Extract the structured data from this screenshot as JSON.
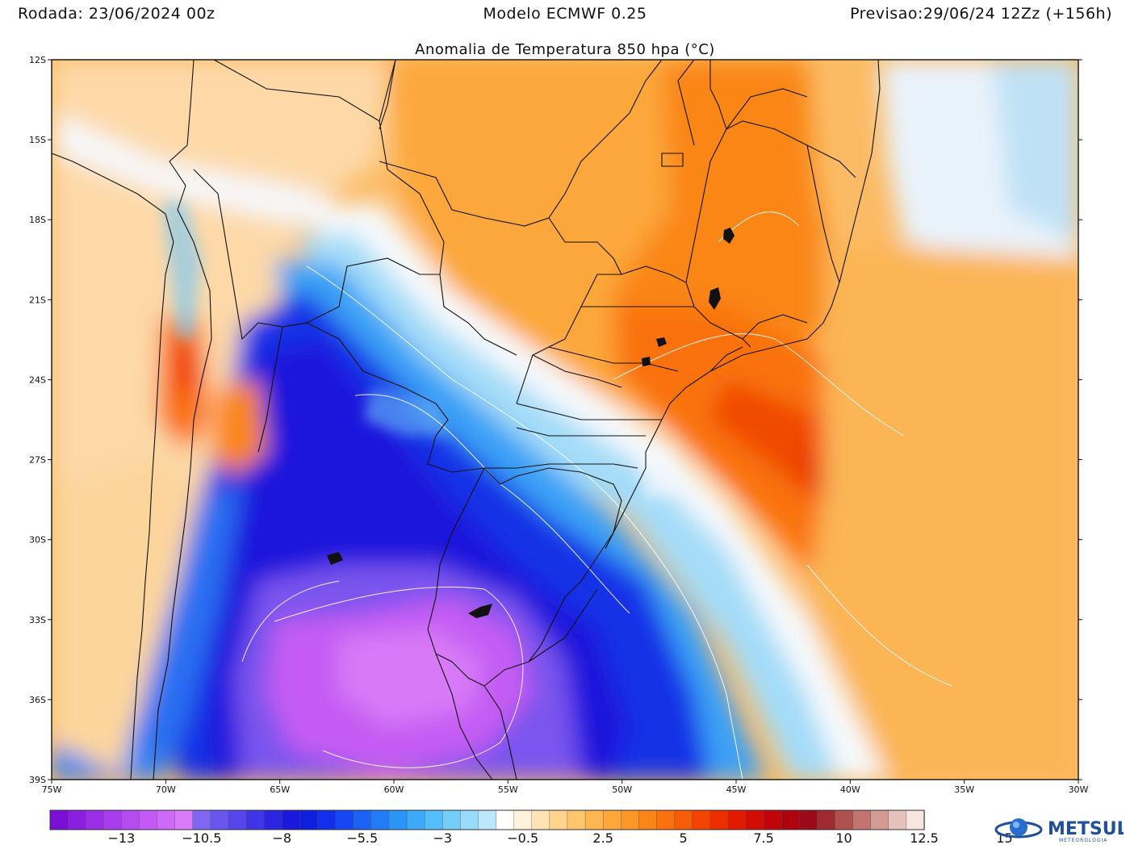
{
  "header": {
    "run": "Rodada: 23/06/2024 00z",
    "model": "Modelo ECMWF 0.25",
    "forecast": "Previsao:29/06/24 12Zz (+156h)",
    "title": "Anomalia de Temperatura 850 hpa (°C)"
  },
  "map": {
    "lon_range": [
      -75,
      -30
    ],
    "lat_range": [
      -39,
      -12
    ],
    "lat_labels": [
      "12S",
      "15S",
      "18S",
      "21S",
      "24S",
      "27S",
      "30S",
      "33S",
      "36S",
      "39S"
    ],
    "lon_labels": [
      "75W",
      "70W",
      "65W",
      "60W",
      "55W",
      "50W",
      "45W",
      "40W",
      "35W",
      "30W"
    ]
  },
  "colorbar": {
    "colors": [
      "#7b0fd6",
      "#8b1ee0",
      "#9a2de8",
      "#a93cee",
      "#b74bf2",
      "#c35af5",
      "#cf69f7",
      "#d97af8",
      "#8066f2",
      "#6a55ee",
      "#5545ea",
      "#4035e6",
      "#2b25e2",
      "#1a18dc",
      "#0f1fe0",
      "#1030ec",
      "#1548f2",
      "#1b62f5",
      "#217cf7",
      "#2a94f8",
      "#3aaaf9",
      "#55bdf9",
      "#75cdfa",
      "#98dbfb",
      "#bce8fc",
      "#ffffff",
      "#fff2dc",
      "#ffe3b5",
      "#ffd48e",
      "#fec56f",
      "#fdb651",
      "#fca73a",
      "#fb9727",
      "#fa8618",
      "#f9720d",
      "#f75c06",
      "#f54402",
      "#ef2e00",
      "#e21a00",
      "#d30d05",
      "#c0050a",
      "#ad040f",
      "#9a0a18",
      "#a02a32",
      "#b0504f",
      "#c27470",
      "#d49a94",
      "#e6c1bb",
      "#f6e6e0"
    ],
    "labels": [
      "−13",
      "−10.5",
      "−8",
      "−5.5",
      "−3",
      "−0.5",
      "2.5",
      "5",
      "7.5",
      "10",
      "12.5",
      "15"
    ]
  },
  "logo": {
    "name": "METSUL",
    "subtitle": "METEOROLOGIA"
  }
}
